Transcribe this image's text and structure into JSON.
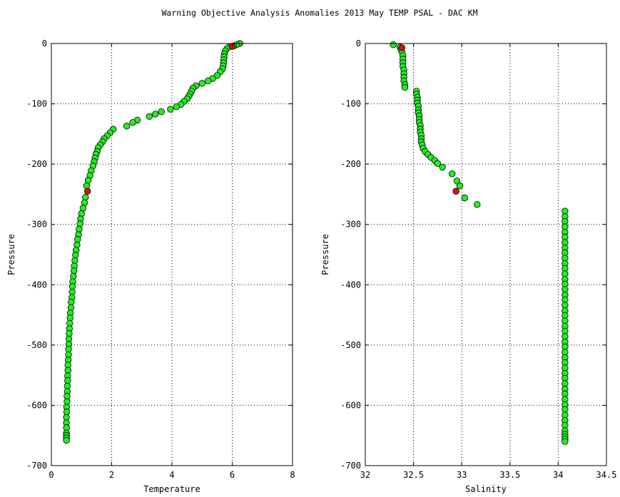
{
  "figure_title": "Warning Objective Analysis Anomalies 2013 May TEMP PSAL - DAC KM",
  "chart_data": [
    {
      "type": "scatter",
      "xlabel": "Temperature",
      "ylabel": "Pressure",
      "xlim": [
        0,
        8
      ],
      "ylim": [
        -700,
        0
      ],
      "xticks": [
        0,
        2,
        4,
        6,
        8
      ],
      "xtick_labels": [
        "0",
        "2",
        "4",
        "6",
        "8"
      ],
      "yticks": [
        0,
        -100,
        -200,
        -300,
        -400,
        -500,
        -600,
        -700
      ],
      "ytick_labels": [
        "0",
        "-100",
        "-200",
        "-300",
        "-400",
        "-500",
        "-600",
        "-700"
      ],
      "grid": true,
      "point_colors": {
        "normal": "#22ee22",
        "flagged": "#dd1111",
        "edge": "#000000"
      },
      "series": [
        {
          "points": [
            [
              6.25,
              0
            ],
            [
              6.15,
              -2
            ],
            [
              6.05,
              -4
            ],
            [
              5.92,
              -5
            ],
            [
              5.83,
              -8
            ],
            [
              5.77,
              -12
            ],
            [
              5.74,
              -17
            ],
            [
              5.73,
              -22
            ],
            [
              5.72,
              -27
            ],
            [
              5.71,
              -32
            ],
            [
              5.7,
              -37
            ],
            [
              5.68,
              -42
            ],
            [
              5.6,
              -47
            ],
            [
              5.5,
              -53
            ],
            [
              5.35,
              -58
            ],
            [
              5.2,
              -62
            ],
            [
              5.0,
              -66
            ],
            [
              4.8,
              -70
            ],
            [
              4.7,
              -74
            ],
            [
              4.65,
              -79
            ],
            [
              4.6,
              -84
            ],
            [
              4.55,
              -88
            ],
            [
              4.5,
              -92
            ],
            [
              4.4,
              -96
            ],
            [
              4.3,
              -101
            ],
            [
              4.15,
              -105
            ],
            [
              3.95,
              -109
            ],
            [
              3.65,
              -113
            ],
            [
              3.45,
              -117
            ],
            [
              3.25,
              -121
            ],
            [
              2.85,
              -127
            ],
            [
              2.7,
              -131
            ],
            [
              2.5,
              -137
            ],
            [
              2.05,
              -142
            ],
            [
              1.95,
              -148
            ],
            [
              1.85,
              -153
            ],
            [
              1.75,
              -158
            ],
            [
              1.7,
              -163
            ],
            [
              1.62,
              -168
            ],
            [
              1.55,
              -173
            ],
            [
              1.52,
              -179
            ],
            [
              1.48,
              -184
            ],
            [
              1.45,
              -190
            ],
            [
              1.42,
              -196
            ],
            [
              1.38,
              -203
            ],
            [
              1.32,
              -211
            ],
            [
              1.28,
              -219
            ],
            [
              1.22,
              -227
            ],
            [
              1.17,
              -236
            ],
            [
              1.13,
              -255
            ],
            [
              1.1,
              -264
            ],
            [
              1.05,
              -273
            ],
            [
              1.0,
              -282
            ],
            [
              0.97,
              -291
            ],
            [
              0.95,
              -299
            ],
            [
              0.92,
              -308
            ],
            [
              0.9,
              -317
            ],
            [
              0.87,
              -325
            ],
            [
              0.85,
              -334
            ],
            [
              0.82,
              -343
            ],
            [
              0.8,
              -351
            ],
            [
              0.78,
              -360
            ],
            [
              0.76,
              -369
            ],
            [
              0.75,
              -377
            ],
            [
              0.73,
              -386
            ],
            [
              0.71,
              -395
            ],
            [
              0.7,
              -403
            ],
            [
              0.69,
              -412
            ],
            [
              0.68,
              -421
            ],
            [
              0.66,
              -429
            ],
            [
              0.65,
              -438
            ],
            [
              0.63,
              -447
            ],
            [
              0.62,
              -455
            ],
            [
              0.61,
              -464
            ],
            [
              0.6,
              -473
            ],
            [
              0.59,
              -481
            ],
            [
              0.58,
              -490
            ],
            [
              0.58,
              -499
            ],
            [
              0.57,
              -507
            ],
            [
              0.57,
              -516
            ],
            [
              0.56,
              -525
            ],
            [
              0.55,
              -533
            ],
            [
              0.55,
              -542
            ],
            [
              0.54,
              -551
            ],
            [
              0.54,
              -559
            ],
            [
              0.53,
              -568
            ],
            [
              0.53,
              -577
            ],
            [
              0.52,
              -585
            ],
            [
              0.52,
              -594
            ],
            [
              0.51,
              -603
            ],
            [
              0.51,
              -611
            ],
            [
              0.5,
              -620
            ],
            [
              0.5,
              -629
            ],
            [
              0.5,
              -637
            ],
            [
              0.5,
              -646
            ],
            [
              0.5,
              -650
            ],
            [
              0.5,
              -654
            ],
            [
              0.5,
              -658
            ]
          ],
          "flagged_points": [
            [
              6.0,
              -5
            ],
            [
              1.2,
              -245
            ]
          ]
        }
      ]
    },
    {
      "type": "scatter",
      "xlabel": "Salinity",
      "ylabel": "Pressure",
      "xlim": [
        32,
        34.5
      ],
      "ylim": [
        -700,
        0
      ],
      "xticks": [
        32,
        32.5,
        33,
        33.5,
        34,
        34.5
      ],
      "xtick_labels": [
        "32",
        "32.5",
        "33",
        "33.5",
        "34",
        "34.5"
      ],
      "yticks": [
        0,
        -100,
        -200,
        -300,
        -400,
        -500,
        -600,
        -700
      ],
      "ytick_labels": [
        "0",
        "-100",
        "-200",
        "-300",
        "-400",
        "-500",
        "-600",
        "-700"
      ],
      "grid": true,
      "point_colors": {
        "normal": "#22ee22",
        "flagged": "#dd1111",
        "edge": "#000000"
      },
      "series": [
        {
          "points": [
            [
              32.29,
              -2
            ],
            [
              32.36,
              -6
            ],
            [
              32.37,
              -10
            ],
            [
              32.38,
              -14
            ],
            [
              32.39,
              -20
            ],
            [
              32.39,
              -26
            ],
            [
              32.39,
              -32
            ],
            [
              32.39,
              -38
            ],
            [
              32.4,
              -44
            ],
            [
              32.4,
              -50
            ],
            [
              32.4,
              -56
            ],
            [
              32.4,
              -62
            ],
            [
              32.41,
              -68
            ],
            [
              32.41,
              -73
            ],
            [
              32.53,
              -79
            ],
            [
              32.53,
              -84
            ],
            [
              32.54,
              -89
            ],
            [
              32.54,
              -94
            ],
            [
              32.54,
              -99
            ],
            [
              32.55,
              -104
            ],
            [
              32.55,
              -110
            ],
            [
              32.55,
              -115
            ],
            [
              32.56,
              -120
            ],
            [
              32.56,
              -126
            ],
            [
              32.56,
              -131
            ],
            [
              32.57,
              -136
            ],
            [
              32.57,
              -142
            ],
            [
              32.57,
              -147
            ],
            [
              32.58,
              -152
            ],
            [
              32.58,
              -158
            ],
            [
              32.58,
              -163
            ],
            [
              32.59,
              -168
            ],
            [
              32.6,
              -174
            ],
            [
              32.62,
              -179
            ],
            [
              32.65,
              -184
            ],
            [
              32.68,
              -189
            ],
            [
              32.72,
              -194
            ],
            [
              32.75,
              -199
            ],
            [
              32.8,
              -205
            ],
            [
              32.9,
              -216
            ],
            [
              32.95,
              -228
            ],
            [
              32.98,
              -236
            ],
            [
              33.03,
              -256
            ],
            [
              33.16,
              -267
            ],
            [
              34.07,
              -278
            ],
            [
              34.07,
              -287
            ],
            [
              34.07,
              -295
            ],
            [
              34.07,
              -304
            ],
            [
              34.07,
              -313
            ],
            [
              34.07,
              -321
            ],
            [
              34.07,
              -330
            ],
            [
              34.07,
              -339
            ],
            [
              34.07,
              -347
            ],
            [
              34.07,
              -356
            ],
            [
              34.07,
              -365
            ],
            [
              34.07,
              -373
            ],
            [
              34.07,
              -382
            ],
            [
              34.07,
              -391
            ],
            [
              34.07,
              -399
            ],
            [
              34.07,
              -408
            ],
            [
              34.07,
              -417
            ],
            [
              34.07,
              -425
            ],
            [
              34.07,
              -434
            ],
            [
              34.07,
              -443
            ],
            [
              34.07,
              -451
            ],
            [
              34.07,
              -460
            ],
            [
              34.07,
              -469
            ],
            [
              34.07,
              -477
            ],
            [
              34.07,
              -486
            ],
            [
              34.07,
              -495
            ],
            [
              34.07,
              -503
            ],
            [
              34.07,
              -512
            ],
            [
              34.07,
              -521
            ],
            [
              34.07,
              -529
            ],
            [
              34.07,
              -538
            ],
            [
              34.07,
              -547
            ],
            [
              34.07,
              -555
            ],
            [
              34.07,
              -564
            ],
            [
              34.07,
              -573
            ],
            [
              34.07,
              -581
            ],
            [
              34.07,
              -590
            ],
            [
              34.07,
              -599
            ],
            [
              34.07,
              -607
            ],
            [
              34.07,
              -616
            ],
            [
              34.07,
              -625
            ],
            [
              34.07,
              -633
            ],
            [
              34.07,
              -642
            ],
            [
              34.07,
              -648
            ],
            [
              34.07,
              -652
            ],
            [
              34.07,
              -656
            ],
            [
              34.07,
              -660
            ]
          ],
          "flagged_points": [
            [
              32.38,
              -7
            ],
            [
              32.94,
              -245
            ]
          ]
        }
      ]
    }
  ]
}
